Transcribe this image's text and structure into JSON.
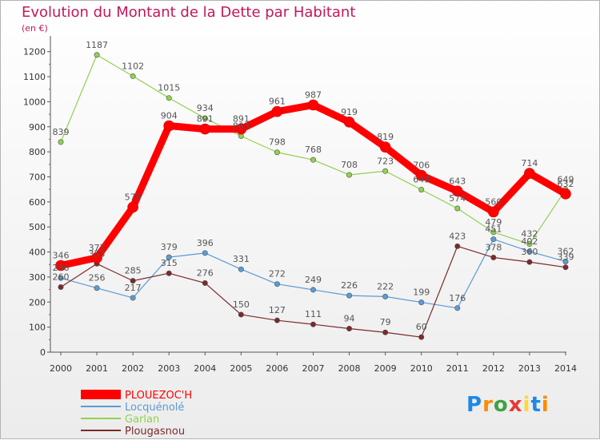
{
  "chart_data": {
    "type": "line",
    "title": "Evolution du Montant de la Dette par Habitant",
    "subtitle": "(en €)",
    "xlabel": "",
    "ylabel": "",
    "x": [
      "2000",
      "2001",
      "2002",
      "2003",
      "2004",
      "2005",
      "2006",
      "2007",
      "2008",
      "2009",
      "2010",
      "2011",
      "2012",
      "2013",
      "2014"
    ],
    "ylim": [
      0,
      1250
    ],
    "yticks": [
      0,
      100,
      200,
      300,
      400,
      500,
      600,
      700,
      800,
      900,
      1000,
      1100,
      1200
    ],
    "grid": false,
    "legend_position": "bottom-left",
    "series": [
      {
        "name": "PLOUEZOC'H",
        "color": "#ff0000",
        "values": [
          346,
          377,
          579,
          904,
          891,
          891,
          961,
          987,
          919,
          819,
          706,
          643,
          560,
          714,
          632
        ]
      },
      {
        "name": "Locquénolé",
        "color": "#5b9bd5",
        "values": [
          296,
          256,
          217,
          379,
          396,
          331,
          272,
          249,
          226,
          222,
          199,
          176,
          451,
          402,
          362
        ]
      },
      {
        "name": "Garlan",
        "color": "#92d050",
        "values": [
          839,
          1187,
          1102,
          1015,
          934,
          863,
          798,
          768,
          708,
          723,
          649,
          574,
          479,
          432,
          649
        ]
      },
      {
        "name": "Plougasnou",
        "color": "#7b2a2a",
        "values": [
          260,
          353,
          285,
          315,
          276,
          150,
          127,
          111,
          94,
          79,
          60,
          423,
          378,
          360,
          339
        ]
      }
    ]
  },
  "brand": {
    "letters": [
      "P",
      "r",
      "o",
      "x",
      "i",
      "t",
      "i"
    ],
    "colors": [
      "#1e88e5",
      "#fb8c00",
      "#43a047",
      "#e53935",
      "#fdd835",
      "#1e88e5",
      "#fb8c00"
    ]
  }
}
